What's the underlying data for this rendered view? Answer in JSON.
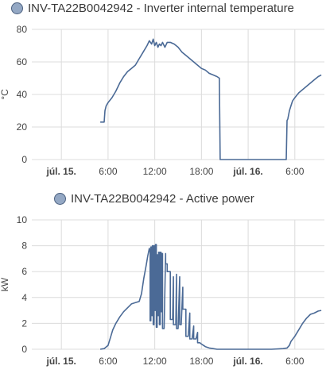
{
  "chart_data": [
    {
      "type": "line",
      "title": "INV-TA22B0042942 - Inverter internal temperature",
      "ylabel": "°C",
      "ylim": [
        0,
        80
      ],
      "yticks": [
        "0",
        "20",
        "40",
        "60",
        "80"
      ],
      "xticks": [
        "júl. 15.",
        "6:00",
        "12:00",
        "18:00",
        "júl. 16.",
        "6:00"
      ],
      "xticks_bold": [
        true,
        false,
        false,
        false,
        true,
        false
      ],
      "xlim_hours": [
        -3.8,
        33.8
      ],
      "grid": true,
      "legend": "top-left",
      "color": "#4b6a96",
      "series": [
        {
          "x": [
            5.0,
            5.5,
            5.6,
            5.75,
            6.0,
            6.5,
            7.0,
            7.5,
            8.0,
            8.5,
            9.0,
            9.5,
            10.0,
            10.5,
            11.0,
            11.3,
            11.6,
            11.8,
            12.0,
            12.2,
            12.4,
            12.6,
            12.8,
            13.0,
            13.3,
            13.6,
            14.0,
            14.5,
            15.0,
            15.5,
            16.0,
            16.5,
            17.0,
            17.5,
            18.0,
            18.5,
            19.0,
            19.5,
            20.0,
            20.3,
            20.3,
            20.4,
            24.0,
            28.9,
            29.0,
            29.1,
            29.3,
            29.5,
            29.7,
            30.0,
            30.5,
            31.0,
            31.5,
            32.0,
            32.5,
            33.0,
            33.4
          ],
          "y": [
            23,
            23,
            30,
            33,
            35,
            38,
            42,
            47,
            51,
            54,
            56,
            58,
            62,
            66,
            70,
            73,
            71,
            74,
            70,
            72,
            69,
            71,
            70,
            72,
            69,
            72,
            72,
            71,
            69,
            66,
            64,
            62,
            60,
            58,
            56,
            55,
            53,
            52,
            51,
            50,
            48,
            0,
            0,
            0,
            24,
            25,
            30,
            33,
            36,
            38,
            41,
            43,
            45,
            47,
            49,
            51,
            52
          ]
        }
      ]
    },
    {
      "type": "line",
      "title": "INV-TA22B0042942 - Active power",
      "ylabel": "kW",
      "ylim": [
        0,
        10
      ],
      "yticks": [
        "0",
        "2",
        "4",
        "6",
        "8",
        "10"
      ],
      "xticks": [
        "júl. 15.",
        "6:00",
        "12:00",
        "18:00",
        "júl. 16.",
        "6:00"
      ],
      "xticks_bold": [
        true,
        false,
        false,
        false,
        true,
        false
      ],
      "xlim_hours": [
        -3.8,
        33.8
      ],
      "grid": true,
      "legend": "top-center",
      "color": "#4b6a96",
      "series": [
        {
          "x": [
            5.0,
            5.5,
            6.0,
            6.3,
            6.6,
            7.0,
            7.5,
            8.0,
            8.5,
            9.0,
            9.5,
            10.0,
            10.3,
            10.6,
            10.9,
            11.1,
            11.3,
            11.4,
            11.4,
            11.5,
            11.5,
            11.6,
            11.6,
            11.7,
            11.7,
            11.8,
            11.8,
            11.9,
            11.9,
            12.0,
            12.0,
            12.1,
            12.1,
            12.2,
            12.2,
            12.3,
            12.3,
            12.4,
            12.4,
            12.5,
            12.5,
            12.6,
            12.6,
            12.7,
            12.7,
            12.8,
            12.8,
            12.9,
            12.9,
            13.0,
            13.0,
            13.2,
            13.4,
            13.4,
            13.6,
            13.6,
            13.9,
            14.0,
            14.0,
            14.3,
            14.4,
            14.4,
            14.7,
            14.8,
            14.8,
            15.0,
            15.2,
            15.2,
            15.4,
            15.6,
            15.6,
            15.8,
            16.0,
            16.0,
            16.3,
            16.5,
            16.5,
            16.8,
            17.0,
            17.0,
            17.3,
            17.5,
            17.5,
            17.8,
            18.0,
            18.5,
            19.0,
            19.5,
            20.0,
            21.0,
            22.0,
            24.0,
            27.0,
            28.5,
            29.0,
            29.3,
            29.5,
            30.0,
            30.5,
            31.0,
            31.5,
            32.0,
            32.5,
            33.0,
            33.4
          ],
          "y": [
            0,
            0.05,
            0.3,
            0.9,
            1.5,
            2.0,
            2.5,
            2.9,
            3.2,
            3.5,
            3.6,
            3.7,
            4.3,
            5.5,
            6.5,
            7.2,
            7.8,
            7.5,
            2.2,
            2.2,
            7.9,
            7.9,
            2.6,
            2.6,
            8.0,
            8.0,
            1.9,
            1.9,
            8.0,
            8.0,
            3.0,
            3.0,
            8.1,
            8.1,
            1.7,
            1.7,
            7.3,
            7.3,
            2.6,
            2.6,
            7.5,
            7.5,
            1.9,
            1.9,
            7.5,
            7.5,
            2.9,
            2.9,
            7.4,
            7.4,
            1.6,
            1.6,
            7.4,
            6.6,
            6.6,
            6.0,
            6.0,
            6.0,
            2.3,
            2.3,
            5.6,
            1.9,
            1.9,
            5.8,
            1.6,
            1.6,
            5.6,
            1.9,
            1.9,
            4.8,
            3.1,
            3.1,
            3.1,
            1.0,
            1.0,
            2.8,
            0.8,
            0.8,
            1.8,
            0.8,
            0.8,
            1.3,
            0.5,
            0.5,
            0.4,
            0.2,
            0.1,
            0.05,
            0,
            0,
            0,
            0,
            0,
            0.05,
            0.1,
            0.3,
            0.6,
            1.0,
            1.5,
            2.0,
            2.4,
            2.7,
            2.8,
            2.95,
            3.0
          ]
        }
      ]
    }
  ]
}
